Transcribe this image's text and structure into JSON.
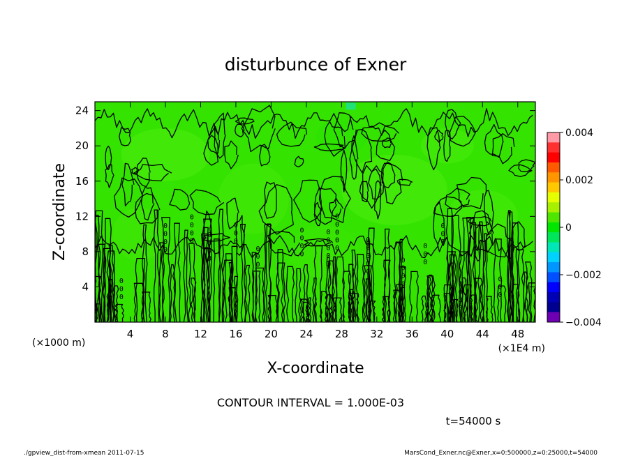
{
  "chart_data": {
    "type": "heatmap",
    "title": "disturbunce of Exner",
    "xlabel": "X-coordinate",
    "ylabel": "Z-coordinate",
    "x_unit_left": "(×1000 m)",
    "x_unit_right": "(×1E4 m)",
    "xlim": [
      0,
      50
    ],
    "ylim": [
      0,
      25
    ],
    "x_ticks": [
      "4",
      "8",
      "12",
      "16",
      "20",
      "24",
      "28",
      "32",
      "36",
      "40",
      "44",
      "48"
    ],
    "y_ticks": [
      "4",
      "8",
      "12",
      "16",
      "20",
      "24"
    ],
    "colorbar": {
      "range": [
        -0.004,
        0.004
      ],
      "tick_labels": [
        "0.004",
        "0.002",
        "0",
        "−0.002",
        "−0.004"
      ],
      "colors": [
        "#ff9aa6",
        "#ff3030",
        "#ff0000",
        "#ff5a00",
        "#ff9600",
        "#ffc800",
        "#e6ff00",
        "#a6f000",
        "#4ee600",
        "#00e600",
        "#00e65a",
        "#00e6b4",
        "#00d2ff",
        "#0096ff",
        "#0050ff",
        "#0000ff",
        "#0000b4",
        "#000090",
        "#6e00b4"
      ]
    },
    "field_color": "#34e400",
    "contour_labels": [
      "0",
      "0",
      "0"
    ],
    "contour_interval_text": "CONTOUR INTERVAL = 1.000E-03",
    "time_text": "t=54000 s"
  },
  "footer": {
    "left": "./gpview_dist-from-xmean  2011-07-15",
    "right": "MarsCond_Exner.nc@Exner,x=0:500000,z=0:25000,t=54000"
  }
}
